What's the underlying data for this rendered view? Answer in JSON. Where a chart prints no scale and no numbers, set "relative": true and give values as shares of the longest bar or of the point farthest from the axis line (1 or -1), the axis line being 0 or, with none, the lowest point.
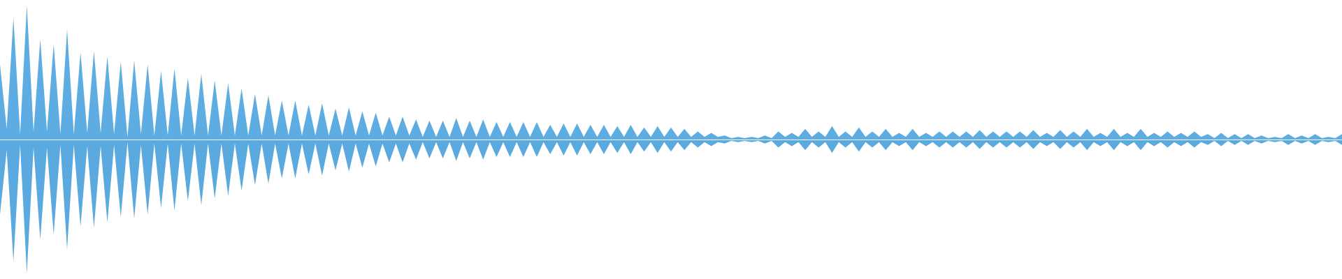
{
  "chart_data": {
    "type": "area",
    "relative": true,
    "categories": [
      null,
      null,
      null,
      null,
      null,
      null,
      null,
      null,
      null,
      null,
      null,
      null,
      null,
      null,
      null,
      null,
      null,
      null,
      null,
      null,
      null,
      null,
      null,
      null,
      null,
      null,
      null,
      null,
      null,
      null,
      null,
      null,
      null,
      null,
      null,
      null,
      null,
      null,
      null,
      null,
      null,
      null,
      null,
      null,
      null,
      null,
      null,
      null,
      null,
      null,
      null,
      null,
      null,
      null,
      null,
      null,
      null,
      null,
      null,
      null,
      null,
      null,
      null,
      null,
      null,
      null,
      null,
      null,
      null,
      null,
      null,
      null,
      null,
      null,
      null,
      null,
      null,
      null,
      null,
      null,
      null,
      null,
      null,
      null,
      null,
      null,
      null,
      null,
      null,
      null,
      null,
      null,
      null,
      null,
      null,
      null,
      null,
      null,
      null,
      null,
      null,
      null,
      null,
      null,
      null,
      null,
      null,
      null,
      null,
      null,
      null,
      null,
      null,
      null,
      null,
      null,
      null,
      null,
      null,
      null,
      null,
      null,
      null,
      null,
      null,
      null,
      null,
      null,
      null,
      null,
      null,
      null,
      null,
      null,
      null,
      null,
      null,
      null,
      null,
      null,
      null,
      null,
      null,
      null,
      null,
      null,
      null,
      null,
      null,
      null,
      null,
      null,
      null,
      null,
      null,
      null,
      null,
      null,
      null,
      null,
      null,
      null,
      null,
      null,
      null,
      null,
      null,
      null,
      null,
      null,
      null,
      null,
      null,
      null,
      null,
      null,
      null,
      null,
      null,
      null,
      null,
      null,
      null,
      null,
      null,
      null,
      null,
      null,
      null,
      null,
      null,
      null,
      null,
      null,
      null,
      null,
      null,
      null,
      null,
      null,
      null
    ],
    "series": [
      {
        "color": "#5dade2",
        "values": [
          0.56,
          0.08,
          0.91,
          0.04,
          1,
          0.06,
          0.75,
          0.06,
          0.71,
          0.04,
          0.82,
          0.04,
          0.65,
          0.05,
          0.66,
          0.05,
          0.62,
          0.04,
          0.58,
          0.02,
          0.59,
          0.04,
          0.56,
          0.03,
          0.51,
          0.03,
          0.53,
          0.03,
          0.46,
          0.03,
          0.49,
          0.03,
          0.44,
          0.03,
          0.42,
          0.03,
          0.38,
          0.03,
          0.34,
          0.03,
          0.33,
          0.03,
          0.29,
          0.03,
          0.29,
          0.03,
          0.26,
          0.03,
          0.27,
          0.03,
          0.23,
          0.03,
          0.24,
          0.03,
          0.21,
          0.03,
          0.2,
          0.03,
          0.17,
          0.03,
          0.17,
          0.03,
          0.15,
          0.02,
          0.14,
          0.02,
          0.14,
          0.02,
          0.16,
          0.02,
          0.14,
          0.02,
          0.15,
          0.02,
          0.13,
          0.02,
          0.13,
          0.02,
          0.13,
          0.02,
          0.13,
          0.02,
          0.11,
          0.02,
          0.12,
          0.02,
          0.12,
          0.02,
          0.11,
          0.02,
          0.11,
          0.02,
          0.1,
          0.02,
          0.11,
          0.02,
          0.09,
          0.02,
          0.1,
          0.02,
          0.09,
          0.02,
          0.08,
          0.02,
          0.06,
          0.02,
          0.05,
          0.02,
          0.03,
          0.01,
          0.02,
          0.01,
          0.02,
          0.01,
          0.03,
          0.01,
          0.06,
          0.02,
          0.05,
          0.02,
          0.08,
          0.02,
          0.06,
          0.02,
          0.1,
          0.02,
          0.06,
          0.02,
          0.09,
          0.02,
          0.06,
          0.02,
          0.08,
          0.02,
          0.05,
          0.02,
          0.08,
          0.02,
          0.05,
          0.02,
          0.06,
          0.02,
          0.06,
          0.02,
          0.06,
          0.02,
          0.07,
          0.02,
          0.06,
          0.02,
          0.06,
          0.02,
          0.06,
          0.02,
          0.07,
          0.02,
          0.05,
          0.02,
          0.07,
          0.02,
          0.06,
          0.02,
          0.08,
          0.02,
          0.05,
          0.02,
          0.08,
          0.02,
          0.05,
          0.02,
          0.08,
          0.02,
          0.05,
          0.02,
          0.06,
          0.02,
          0.05,
          0.02,
          0.06,
          0.02,
          0.04,
          0.01,
          0.05,
          0.01,
          0.04,
          0.01,
          0.04,
          0.01,
          0.03,
          0.01,
          0.02,
          0.01,
          0.04,
          0.01,
          0.03,
          0.01,
          0.04,
          0.01,
          0.02,
          0.01,
          0.04
        ]
      },
      {
        "color": "#5aa9df",
        "values": [
          -0.56,
          -0.08,
          -0.91,
          -0.04,
          -1,
          -0.06,
          -0.75,
          -0.06,
          -0.71,
          -0.04,
          -0.82,
          -0.04,
          -0.65,
          -0.05,
          -0.66,
          -0.05,
          -0.62,
          -0.04,
          -0.58,
          -0.02,
          -0.59,
          -0.04,
          -0.56,
          -0.03,
          -0.51,
          -0.03,
          -0.53,
          -0.03,
          -0.46,
          -0.03,
          -0.49,
          -0.03,
          -0.44,
          -0.03,
          -0.42,
          -0.03,
          -0.38,
          -0.03,
          -0.34,
          -0.03,
          -0.33,
          -0.03,
          -0.29,
          -0.03,
          -0.29,
          -0.03,
          -0.26,
          -0.03,
          -0.27,
          -0.03,
          -0.23,
          -0.03,
          -0.24,
          -0.03,
          -0.21,
          -0.03,
          -0.2,
          -0.03,
          -0.17,
          -0.03,
          -0.17,
          -0.03,
          -0.15,
          -0.02,
          -0.14,
          -0.02,
          -0.14,
          -0.02,
          -0.16,
          -0.02,
          -0.14,
          -0.02,
          -0.15,
          -0.02,
          -0.13,
          -0.02,
          -0.13,
          -0.02,
          -0.13,
          -0.02,
          -0.13,
          -0.02,
          -0.11,
          -0.02,
          -0.12,
          -0.02,
          -0.12,
          -0.02,
          -0.11,
          -0.02,
          -0.11,
          -0.02,
          -0.1,
          -0.02,
          -0.11,
          -0.02,
          -0.09,
          -0.02,
          -0.1,
          -0.02,
          -0.09,
          -0.02,
          -0.08,
          -0.02,
          -0.06,
          -0.02,
          -0.05,
          -0.02,
          -0.03,
          -0.01,
          -0.02,
          -0.01,
          -0.02,
          -0.01,
          -0.03,
          -0.01,
          -0.06,
          -0.02,
          -0.05,
          -0.02,
          -0.08,
          -0.02,
          -0.06,
          -0.02,
          -0.1,
          -0.02,
          -0.06,
          -0.02,
          -0.09,
          -0.02,
          -0.06,
          -0.02,
          -0.08,
          -0.02,
          -0.05,
          -0.02,
          -0.08,
          -0.02,
          -0.05,
          -0.02,
          -0.06,
          -0.02,
          -0.06,
          -0.02,
          -0.06,
          -0.02,
          -0.07,
          -0.02,
          -0.06,
          -0.02,
          -0.06,
          -0.02,
          -0.06,
          -0.02,
          -0.07,
          -0.02,
          -0.05,
          -0.02,
          -0.07,
          -0.02,
          -0.06,
          -0.02,
          -0.08,
          -0.02,
          -0.05,
          -0.02,
          -0.08,
          -0.02,
          -0.05,
          -0.02,
          -0.08,
          -0.02,
          -0.05,
          -0.02,
          -0.06,
          -0.02,
          -0.05,
          -0.02,
          -0.06,
          -0.02,
          -0.04,
          -0.01,
          -0.05,
          -0.01,
          -0.04,
          -0.01,
          -0.04,
          -0.01,
          -0.03,
          -0.01,
          -0.02,
          -0.01,
          -0.04,
          -0.01,
          -0.03,
          -0.01,
          -0.04,
          -0.01,
          -0.02,
          -0.01,
          -0.04
        ]
      }
    ]
  }
}
